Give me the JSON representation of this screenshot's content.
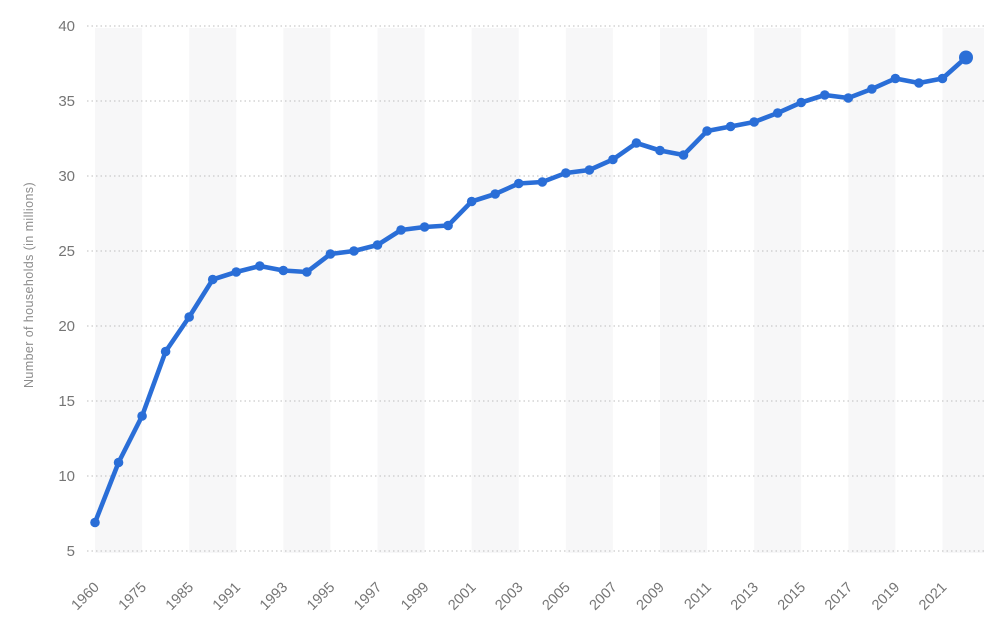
{
  "chart_data": {
    "type": "line",
    "title": "",
    "xlabel": "",
    "ylabel": "Number of households (in millions)",
    "x": [
      1960,
      1970,
      1975,
      1980,
      1985,
      1990,
      1991,
      1992,
      1993,
      1994,
      1995,
      1996,
      1997,
      1998,
      1999,
      2000,
      2001,
      2002,
      2003,
      2004,
      2005,
      2006,
      2007,
      2008,
      2009,
      2010,
      2011,
      2012,
      2013,
      2014,
      2015,
      2016,
      2017,
      2018,
      2019,
      2020,
      2021,
      2022
    ],
    "values": [
      6.9,
      10.9,
      14.0,
      18.3,
      20.6,
      23.1,
      23.6,
      24.0,
      23.7,
      23.6,
      24.8,
      25.0,
      25.4,
      26.4,
      26.6,
      26.7,
      28.3,
      28.8,
      29.5,
      29.6,
      30.2,
      30.4,
      31.1,
      32.2,
      31.7,
      31.4,
      33.0,
      33.3,
      33.6,
      34.2,
      34.9,
      35.4,
      35.2,
      35.8,
      36.5,
      36.2,
      36.5,
      37.9
    ],
    "x_tick_labels": [
      "1960",
      "1975",
      "1985",
      "1991",
      "1993",
      "1995",
      "1997",
      "1999",
      "2001",
      "2003",
      "2005",
      "2007",
      "2009",
      "2011",
      "2013",
      "2015",
      "2017",
      "2019",
      "2021"
    ],
    "x_tick_indices": [
      0,
      2,
      4,
      6,
      8,
      10,
      12,
      14,
      16,
      18,
      20,
      22,
      24,
      26,
      28,
      30,
      32,
      34,
      36
    ],
    "y_ticks": [
      5,
      10,
      15,
      20,
      25,
      30,
      35,
      40
    ],
    "ylim": [
      5,
      40
    ],
    "grid": "dotted-horizontal",
    "legend_position": "none",
    "series_color": "#2a6ed7",
    "band_color": "#f7f7f8",
    "grid_color": "#c9c9c9",
    "tick_label_color": "#757575",
    "axis_title_color": "#8c8c8c",
    "background_color": "#ffffff"
  }
}
